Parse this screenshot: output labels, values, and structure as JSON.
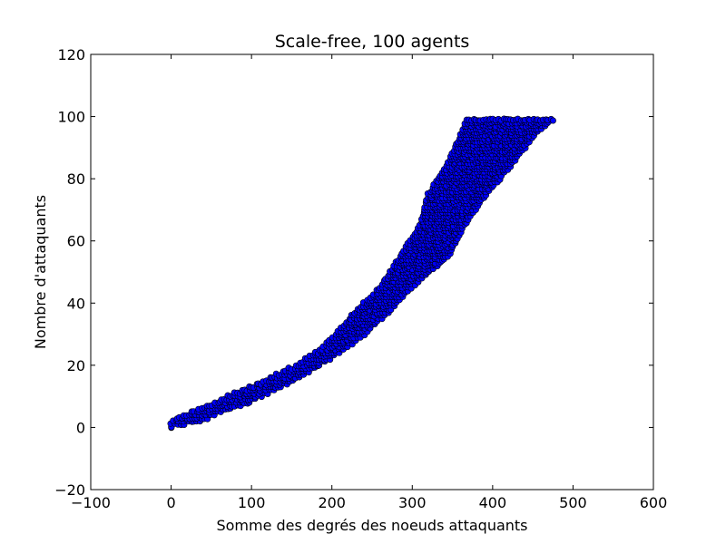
{
  "chart_data": {
    "type": "scatter",
    "title": "Scale-free, 100 agents",
    "xlabel": "Somme des degrés des noeuds attaquants",
    "ylabel": "Nombre d'attaquants",
    "xlim": [
      -100,
      600
    ],
    "ylim": [
      -20,
      120
    ],
    "xticks": [
      "−100",
      "0",
      "100",
      "200",
      "300",
      "400",
      "500",
      "600"
    ],
    "yticks": [
      "−20",
      "0",
      "20",
      "40",
      "60",
      "80",
      "100",
      "120"
    ],
    "grid": false,
    "marker_color": "#0000ff",
    "marker_edge_color": "#000000",
    "series": [
      {
        "values": [
          {
            "k": 0,
            "x_min": 0,
            "x_max": 0
          },
          {
            "k": 1,
            "x_min": 0,
            "x_max": 16
          },
          {
            "k": 2,
            "x_min": 3,
            "x_max": 35
          },
          {
            "k": 3,
            "x_min": 7,
            "x_max": 45
          },
          {
            "k": 5,
            "x_min": 25,
            "x_max": 62
          },
          {
            "k": 8,
            "x_min": 55,
            "x_max": 98
          },
          {
            "k": 10,
            "x_min": 70,
            "x_max": 112
          },
          {
            "k": 15,
            "x_min": 115,
            "x_max": 152
          },
          {
            "k": 20,
            "x_min": 155,
            "x_max": 185
          },
          {
            "k": 25,
            "x_min": 185,
            "x_max": 215
          },
          {
            "k": 30,
            "x_min": 205,
            "x_max": 240
          },
          {
            "k": 37,
            "x_min": 228,
            "x_max": 270
          },
          {
            "k": 45,
            "x_min": 260,
            "x_max": 298
          },
          {
            "k": 55,
            "x_min": 285,
            "x_max": 345
          },
          {
            "k": 65,
            "x_min": 310,
            "x_max": 365
          },
          {
            "k": 75,
            "x_min": 320,
            "x_max": 392
          },
          {
            "k": 85,
            "x_min": 345,
            "x_max": 425
          },
          {
            "k": 95,
            "x_min": 362,
            "x_max": 455
          },
          {
            "k": 99,
            "x_min": 367,
            "x_max": 475
          }
        ]
      }
    ]
  }
}
